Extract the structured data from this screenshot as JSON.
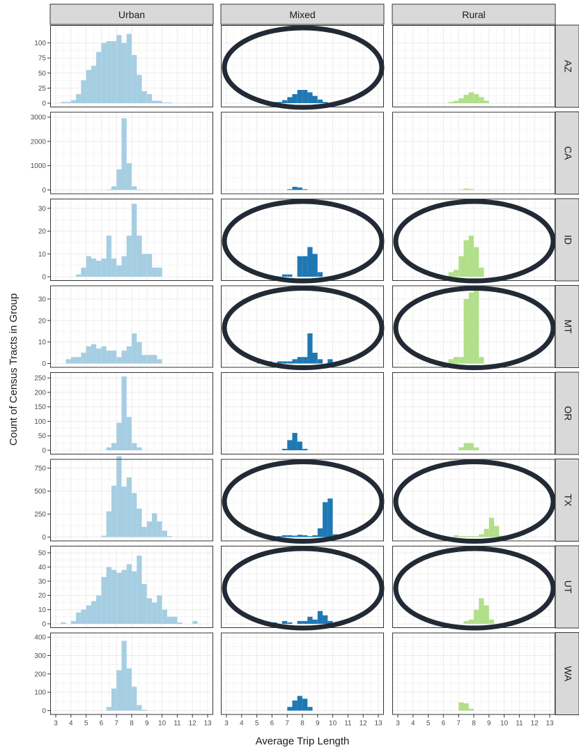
{
  "chart_data": {
    "type": "histogram-facet-grid",
    "xlabel": "Average Trip Length",
    "ylabel": "Count of Census Tracts in Group",
    "xlim": [
      3,
      13
    ],
    "x_ticks": [
      "3",
      "4",
      "5",
      "6",
      "7",
      "8",
      "9",
      "10",
      "11",
      "12",
      "13"
    ],
    "bin_width": 0.333,
    "grid": true,
    "columns": [
      "Urban",
      "Mixed",
      "Rural"
    ],
    "column_colors": {
      "Urban": "#a6cee3",
      "Mixed": "#1f78b4",
      "Rural": "#b2df8a"
    },
    "rows": [
      {
        "state": "AZ",
        "ylim": [
          0,
          125
        ],
        "yticks": [
          "0",
          "25",
          "50",
          "75",
          "100"
        ],
        "circled": [
          "Mixed"
        ],
        "bins": {
          "Urban": [
            [
              3.5,
              2
            ],
            [
              3.83,
              2
            ],
            [
              4.17,
              5
            ],
            [
              4.5,
              15
            ],
            [
              4.83,
              38
            ],
            [
              5.17,
              55
            ],
            [
              5.5,
              62
            ],
            [
              5.83,
              85
            ],
            [
              6.17,
              100
            ],
            [
              6.5,
              103
            ],
            [
              6.83,
              103
            ],
            [
              7.17,
              113
            ],
            [
              7.5,
              100
            ],
            [
              7.83,
              115
            ],
            [
              8.17,
              80
            ],
            [
              8.5,
              47
            ],
            [
              8.83,
              20
            ],
            [
              9.17,
              15
            ],
            [
              9.5,
              4
            ],
            [
              9.83,
              4
            ],
            [
              10.17,
              1
            ],
            [
              10.5,
              1
            ]
          ],
          "Mixed": [
            [
              6.17,
              2
            ],
            [
              6.5,
              2
            ],
            [
              6.83,
              5
            ],
            [
              7.17,
              10
            ],
            [
              7.5,
              15
            ],
            [
              7.83,
              22
            ],
            [
              8.17,
              22
            ],
            [
              8.5,
              18
            ],
            [
              8.83,
              12
            ],
            [
              9.17,
              6
            ],
            [
              9.5,
              2
            ]
          ],
          "Rural": [
            [
              6.5,
              2
            ],
            [
              6.83,
              4
            ],
            [
              7.17,
              8
            ],
            [
              7.5,
              14
            ],
            [
              7.83,
              18
            ],
            [
              8.17,
              15
            ],
            [
              8.5,
              10
            ],
            [
              8.83,
              4
            ]
          ]
        }
      },
      {
        "state": "CA",
        "ylim": [
          0,
          3100
        ],
        "yticks": [
          "0",
          "1000",
          "2000",
          "3000"
        ],
        "circled": [],
        "bins": {
          "Urban": [
            [
              6.5,
              20
            ],
            [
              6.83,
              150
            ],
            [
              7.17,
              850
            ],
            [
              7.5,
              2950
            ],
            [
              7.83,
              1100
            ],
            [
              8.17,
              150
            ],
            [
              8.5,
              20
            ]
          ],
          "Mixed": [
            [
              7.17,
              30
            ],
            [
              7.5,
              130
            ],
            [
              7.83,
              100
            ],
            [
              8.17,
              30
            ]
          ],
          "Rural": [
            [
              7.17,
              20
            ],
            [
              7.5,
              60
            ],
            [
              7.83,
              40
            ]
          ]
        }
      },
      {
        "state": "ID",
        "ylim": [
          0,
          33
        ],
        "yticks": [
          "0",
          "10",
          "20",
          "30"
        ],
        "circled": [
          "Mixed",
          "Rural"
        ],
        "bins": {
          "Urban": [
            [
              4.5,
              1
            ],
            [
              4.83,
              4
            ],
            [
              5.17,
              9
            ],
            [
              5.5,
              8
            ],
            [
              5.83,
              7
            ],
            [
              6.17,
              8
            ],
            [
              6.5,
              18
            ],
            [
              6.83,
              8
            ],
            [
              7.17,
              5
            ],
            [
              7.5,
              9
            ],
            [
              7.83,
              18
            ],
            [
              8.17,
              32
            ],
            [
              8.5,
              18
            ],
            [
              8.83,
              10
            ],
            [
              9.17,
              10
            ],
            [
              9.5,
              4
            ],
            [
              9.83,
              4
            ]
          ],
          "Mixed": [
            [
              6.83,
              1
            ],
            [
              7.17,
              1
            ],
            [
              7.83,
              9
            ],
            [
              8.17,
              9
            ],
            [
              8.5,
              13
            ],
            [
              8.83,
              10
            ],
            [
              9.17,
              2
            ]
          ],
          "Rural": [
            [
              6.5,
              2
            ],
            [
              6.83,
              3
            ],
            [
              7.17,
              9
            ],
            [
              7.5,
              16
            ],
            [
              7.83,
              18
            ],
            [
              8.17,
              13
            ],
            [
              8.5,
              4
            ]
          ]
        }
      },
      {
        "state": "MT",
        "ylim": [
          0,
          35
        ],
        "yticks": [
          "0",
          "10",
          "20",
          "30"
        ],
        "circled": [
          "Mixed",
          "Rural"
        ],
        "bins": {
          "Urban": [
            [
              3.83,
              2
            ],
            [
              4.17,
              3
            ],
            [
              4.5,
              3
            ],
            [
              4.83,
              5
            ],
            [
              5.17,
              8
            ],
            [
              5.5,
              9
            ],
            [
              5.83,
              7
            ],
            [
              6.17,
              8
            ],
            [
              6.5,
              6
            ],
            [
              6.83,
              6
            ],
            [
              7.17,
              3
            ],
            [
              7.5,
              6
            ],
            [
              7.83,
              8
            ],
            [
              8.17,
              14
            ],
            [
              8.5,
              10
            ],
            [
              8.83,
              4
            ],
            [
              9.17,
              4
            ],
            [
              9.5,
              4
            ],
            [
              9.83,
              2
            ]
          ],
          "Mixed": [
            [
              5.17,
              1
            ],
            [
              5.5,
              1
            ],
            [
              5.83,
              1
            ],
            [
              6.5,
              1
            ],
            [
              6.83,
              1
            ],
            [
              7.17,
              1
            ],
            [
              7.5,
              2
            ],
            [
              7.83,
              3
            ],
            [
              8.17,
              3
            ],
            [
              8.5,
              14
            ],
            [
              8.83,
              5
            ],
            [
              9.17,
              2
            ],
            [
              9.83,
              2
            ]
          ],
          "Rural": [
            [
              6.5,
              2
            ],
            [
              6.83,
              3
            ],
            [
              7.17,
              3
            ],
            [
              7.5,
              30
            ],
            [
              7.83,
              33
            ],
            [
              8.17,
              34
            ],
            [
              8.5,
              3
            ]
          ]
        }
      },
      {
        "state": "OR",
        "ylim": [
          0,
          260
        ],
        "yticks": [
          "0",
          "50",
          "100",
          "150",
          "200",
          "250"
        ],
        "circled": [],
        "bins": {
          "Urban": [
            [
              6.5,
              10
            ],
            [
              6.83,
              25
            ],
            [
              7.17,
              95
            ],
            [
              7.5,
              255
            ],
            [
              7.83,
              115
            ],
            [
              8.17,
              25
            ],
            [
              8.5,
              10
            ]
          ],
          "Mixed": [
            [
              6.83,
              5
            ],
            [
              7.17,
              35
            ],
            [
              7.5,
              60
            ],
            [
              7.83,
              30
            ],
            [
              8.17,
              5
            ]
          ],
          "Rural": [
            [
              7.17,
              10
            ],
            [
              7.5,
              25
            ],
            [
              7.83,
              25
            ],
            [
              8.17,
              10
            ]
          ]
        }
      },
      {
        "state": "TX",
        "ylim": [
          0,
          820
        ],
        "yticks": [
          "0",
          "250",
          "500",
          "750"
        ],
        "circled": [
          "Mixed",
          "Rural"
        ],
        "bins": {
          "Urban": [
            [
              6.17,
              15
            ],
            [
              6.5,
              280
            ],
            [
              6.83,
              560
            ],
            [
              7.17,
              880
            ],
            [
              7.5,
              550
            ],
            [
              7.83,
              650
            ],
            [
              8.17,
              480
            ],
            [
              8.5,
              310
            ],
            [
              8.83,
              110
            ],
            [
              9.17,
              170
            ],
            [
              9.5,
              260
            ],
            [
              9.83,
              170
            ],
            [
              10.17,
              70
            ],
            [
              10.5,
              10
            ]
          ],
          "Mixed": [
            [
              6.5,
              10
            ],
            [
              6.83,
              20
            ],
            [
              7.17,
              20
            ],
            [
              7.5,
              15
            ],
            [
              7.83,
              25
            ],
            [
              8.17,
              20
            ],
            [
              8.5,
              10
            ],
            [
              8.83,
              20
            ],
            [
              9.17,
              95
            ],
            [
              9.5,
              380
            ],
            [
              9.83,
              420
            ],
            [
              10.17,
              30
            ]
          ],
          "Rural": [
            [
              6.83,
              20
            ],
            [
              7.17,
              10
            ],
            [
              7.5,
              10
            ],
            [
              7.83,
              10
            ],
            [
              8.17,
              10
            ],
            [
              8.5,
              30
            ],
            [
              8.83,
              90
            ],
            [
              9.17,
              210
            ],
            [
              9.5,
              120
            ],
            [
              9.83,
              15
            ]
          ]
        }
      },
      {
        "state": "UT",
        "ylim": [
          0,
          53
        ],
        "yticks": [
          "0",
          "10",
          "20",
          "30",
          "40",
          "50"
        ],
        "circled": [
          "Mixed",
          "Rural"
        ],
        "bins": {
          "Urban": [
            [
              3.5,
              1
            ],
            [
              4.17,
              2
            ],
            [
              4.5,
              8
            ],
            [
              4.83,
              10
            ],
            [
              5.17,
              13
            ],
            [
              5.5,
              16
            ],
            [
              5.83,
              20
            ],
            [
              6.17,
              33
            ],
            [
              6.5,
              40
            ],
            [
              6.83,
              38
            ],
            [
              7.17,
              36
            ],
            [
              7.5,
              38
            ],
            [
              7.83,
              42
            ],
            [
              8.17,
              37
            ],
            [
              8.5,
              48
            ],
            [
              8.83,
              28
            ],
            [
              9.17,
              18
            ],
            [
              9.5,
              15
            ],
            [
              9.83,
              20
            ],
            [
              10.17,
              10
            ],
            [
              10.5,
              5
            ],
            [
              10.83,
              5
            ],
            [
              11.17,
              1
            ],
            [
              12.17,
              2
            ]
          ],
          "Mixed": [
            [
              6.17,
              1
            ],
            [
              6.83,
              2
            ],
            [
              7.17,
              1
            ],
            [
              7.83,
              2
            ],
            [
              8.17,
              2
            ],
            [
              8.5,
              5
            ],
            [
              8.83,
              3
            ],
            [
              9.17,
              9
            ],
            [
              9.5,
              6
            ],
            [
              9.83,
              2
            ]
          ],
          "Rural": [
            [
              7.5,
              2
            ],
            [
              7.83,
              3
            ],
            [
              8.17,
              10
            ],
            [
              8.5,
              18
            ],
            [
              8.83,
              13
            ],
            [
              9.17,
              3
            ]
          ]
        }
      },
      {
        "state": "WA",
        "ylim": [
          0,
          410
        ],
        "yticks": [
          "0",
          "100",
          "200",
          "300",
          "400"
        ],
        "circled": [],
        "bins": {
          "Urban": [
            [
              6.5,
              20
            ],
            [
              6.83,
              120
            ],
            [
              7.17,
              220
            ],
            [
              7.5,
              380
            ],
            [
              7.83,
              230
            ],
            [
              8.17,
              130
            ],
            [
              8.5,
              30
            ],
            [
              8.83,
              5
            ]
          ],
          "Mixed": [
            [
              7.17,
              20
            ],
            [
              7.5,
              55
            ],
            [
              7.83,
              80
            ],
            [
              8.17,
              65
            ],
            [
              8.5,
              20
            ]
          ],
          "Rural": [
            [
              7.17,
              45
            ],
            [
              7.5,
              40
            ],
            [
              7.83,
              10
            ]
          ]
        }
      }
    ]
  }
}
